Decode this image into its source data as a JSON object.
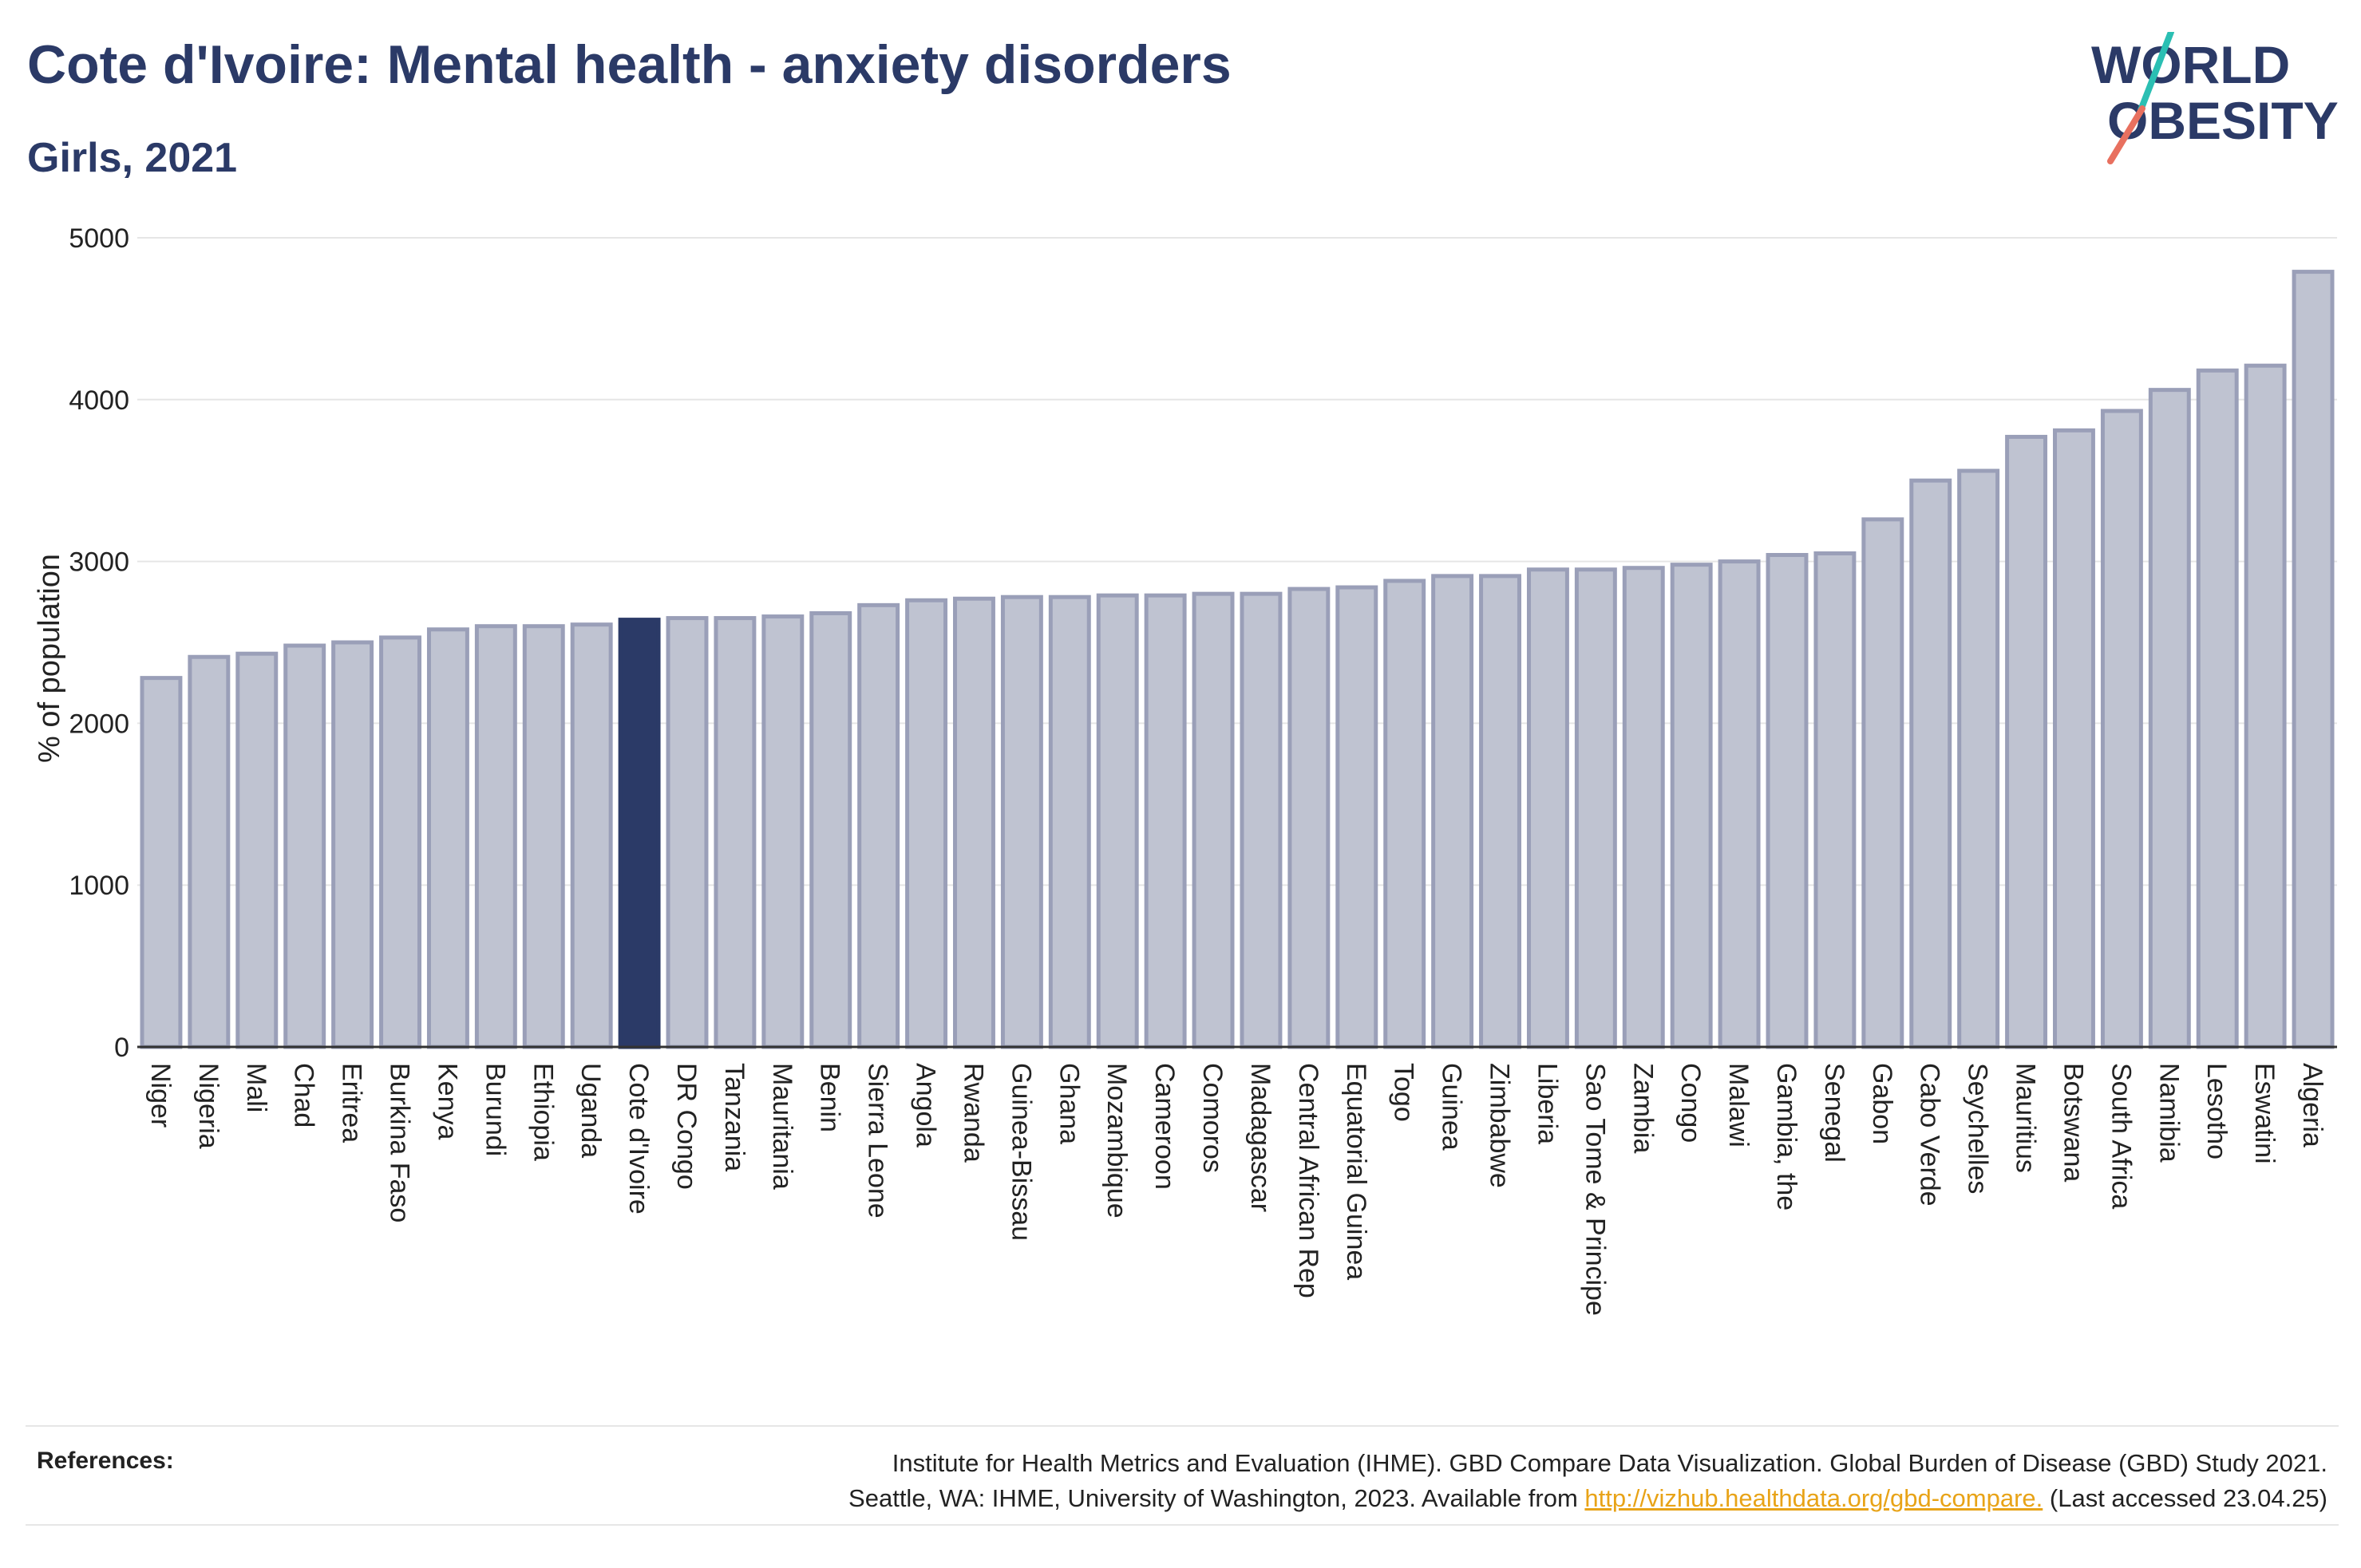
{
  "header": {
    "title": "Cote d'Ivoire: Mental health - anxiety disorders",
    "subtitle": "Girls, 2021"
  },
  "logo": {
    "line1": "WORLD",
    "line2": "OBESITY",
    "stroke_colors": [
      "#2bbfb3",
      "#e8705f"
    ]
  },
  "chart_data": {
    "type": "bar",
    "title": "Cote d'Ivoire: Mental health - anxiety disorders",
    "subtitle": "Girls, 2021",
    "xlabel": "",
    "ylabel": "% of population",
    "ylim": [
      0,
      5000
    ],
    "yticks": [
      0,
      1000,
      2000,
      3000,
      4000,
      5000
    ],
    "grid": true,
    "highlight": "Cote d'Ivoire",
    "colors": {
      "bar": "#bfc3d1",
      "bar_edge": "#9a9fb8",
      "highlight": "#2b3a67"
    },
    "categories": [
      "Niger",
      "Nigeria",
      "Mali",
      "Chad",
      "Eritrea",
      "Burkina Faso",
      "Kenya",
      "Burundi",
      "Ethiopia",
      "Uganda",
      "Cote d'Ivoire",
      "DR Congo",
      "Tanzania",
      "Mauritania",
      "Benin",
      "Sierra Leone",
      "Angola",
      "Rwanda",
      "Guinea-Bissau",
      "Ghana",
      "Mozambique",
      "Cameroon",
      "Comoros",
      "Madagascar",
      "Central African Rep",
      "Equatorial Guinea",
      "Togo",
      "Guinea",
      "Zimbabwe",
      "Liberia",
      "Sao Tome & Principe",
      "Zambia",
      "Congo",
      "Malawi",
      "Gambia, the",
      "Senegal",
      "Gabon",
      "Cabo Verde",
      "Seychelles",
      "Mauritius",
      "Botswana",
      "South Africa",
      "Namibia",
      "Lesotho",
      "Eswatini",
      "Algeria"
    ],
    "values": [
      2280,
      2410,
      2430,
      2480,
      2500,
      2530,
      2580,
      2600,
      2600,
      2610,
      2640,
      2650,
      2650,
      2660,
      2680,
      2730,
      2760,
      2770,
      2780,
      2780,
      2790,
      2790,
      2800,
      2800,
      2830,
      2840,
      2880,
      2910,
      2910,
      2950,
      2950,
      2960,
      2980,
      3000,
      3040,
      3050,
      3260,
      3500,
      3560,
      3770,
      3810,
      3930,
      4060,
      4180,
      4210,
      4790
    ]
  },
  "references": {
    "label": "References:",
    "line1": "Institute for Health Metrics and Evaluation (IHME). GBD Compare Data Visualization. Global Burden of Disease (GBD) Study 2021.",
    "line2_prefix": "Seattle, WA: IHME, University of Washington, 2023. Available from ",
    "link": "http://vizhub.healthdata.org/gbd-compare.",
    "line2_suffix": " (Last accessed 23.04.25)"
  }
}
